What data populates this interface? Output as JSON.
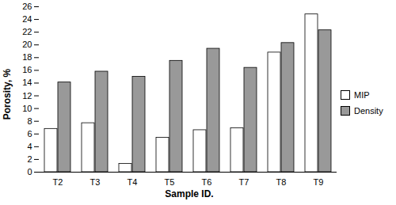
{
  "chart_data": {
    "type": "bar",
    "x_label": "Sample ID.",
    "y_label": "Porosity, %",
    "categories": [
      "T2",
      "T3",
      "T4",
      "T5",
      "T6",
      "T7",
      "T8",
      "T9"
    ],
    "series": [
      {
        "name": "MIP",
        "color": "#ffffff",
        "values": [
          6.8,
          7.7,
          1.3,
          5.4,
          6.6,
          6.9,
          18.8,
          24.8
        ]
      },
      {
        "name": "Density",
        "color": "#999999",
        "values": [
          14.1,
          15.8,
          15.0,
          17.5,
          19.4,
          16.4,
          20.3,
          22.3
        ]
      }
    ],
    "ylim": [
      0,
      26
    ],
    "yticks": [
      0,
      2,
      4,
      6,
      8,
      10,
      12,
      14,
      16,
      18,
      20,
      22,
      24,
      26
    ],
    "grid": false,
    "legend": "right"
  }
}
